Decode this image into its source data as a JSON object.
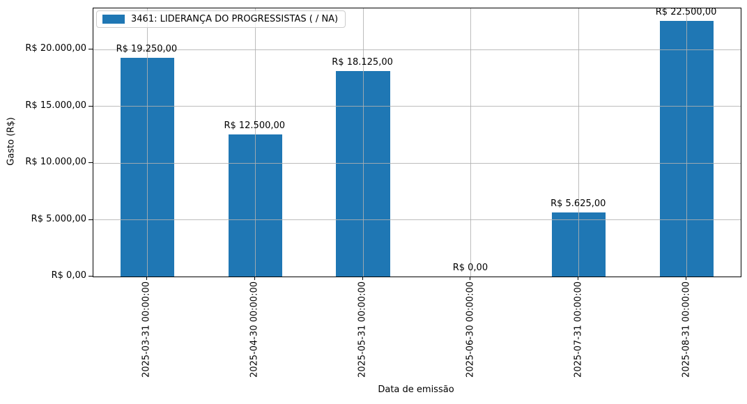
{
  "chart_data": {
    "type": "bar",
    "title": "",
    "xlabel": "Data de emissão",
    "ylabel": "Gasto (R$)",
    "categories": [
      "2025-03-31 00:00:00",
      "2025-04-30 00:00:00",
      "2025-05-31 00:00:00",
      "2025-06-30 00:00:00",
      "2025-07-31 00:00:00",
      "2025-08-31 00:00:00"
    ],
    "values": [
      19250,
      12500,
      18125,
      0,
      5625,
      22500
    ],
    "bar_labels": [
      "R$ 19.250,00",
      "R$ 12.500,00",
      "R$ 18.125,00",
      "R$ 0,00",
      "R$ 5.625,00",
      "R$ 22.500,00"
    ],
    "ytick_values": [
      0,
      5000,
      10000,
      15000,
      20000
    ],
    "ytick_labels": [
      "R$ 0,00",
      "R$ 5.000,00",
      "R$ 10.000,00",
      "R$ 15.000,00",
      "R$ 20.000,00"
    ],
    "ylim": [
      0,
      23625
    ],
    "legend": [
      "3461: LIDERANÇA DO PROGRESSISTAS ( / NA)"
    ],
    "legend_position": "upper-left",
    "grid": true,
    "bar_width_fraction": 0.5,
    "bar_color": "#1f77b4",
    "grid_color": "#b0b0b0",
    "text_color": "#000000"
  }
}
